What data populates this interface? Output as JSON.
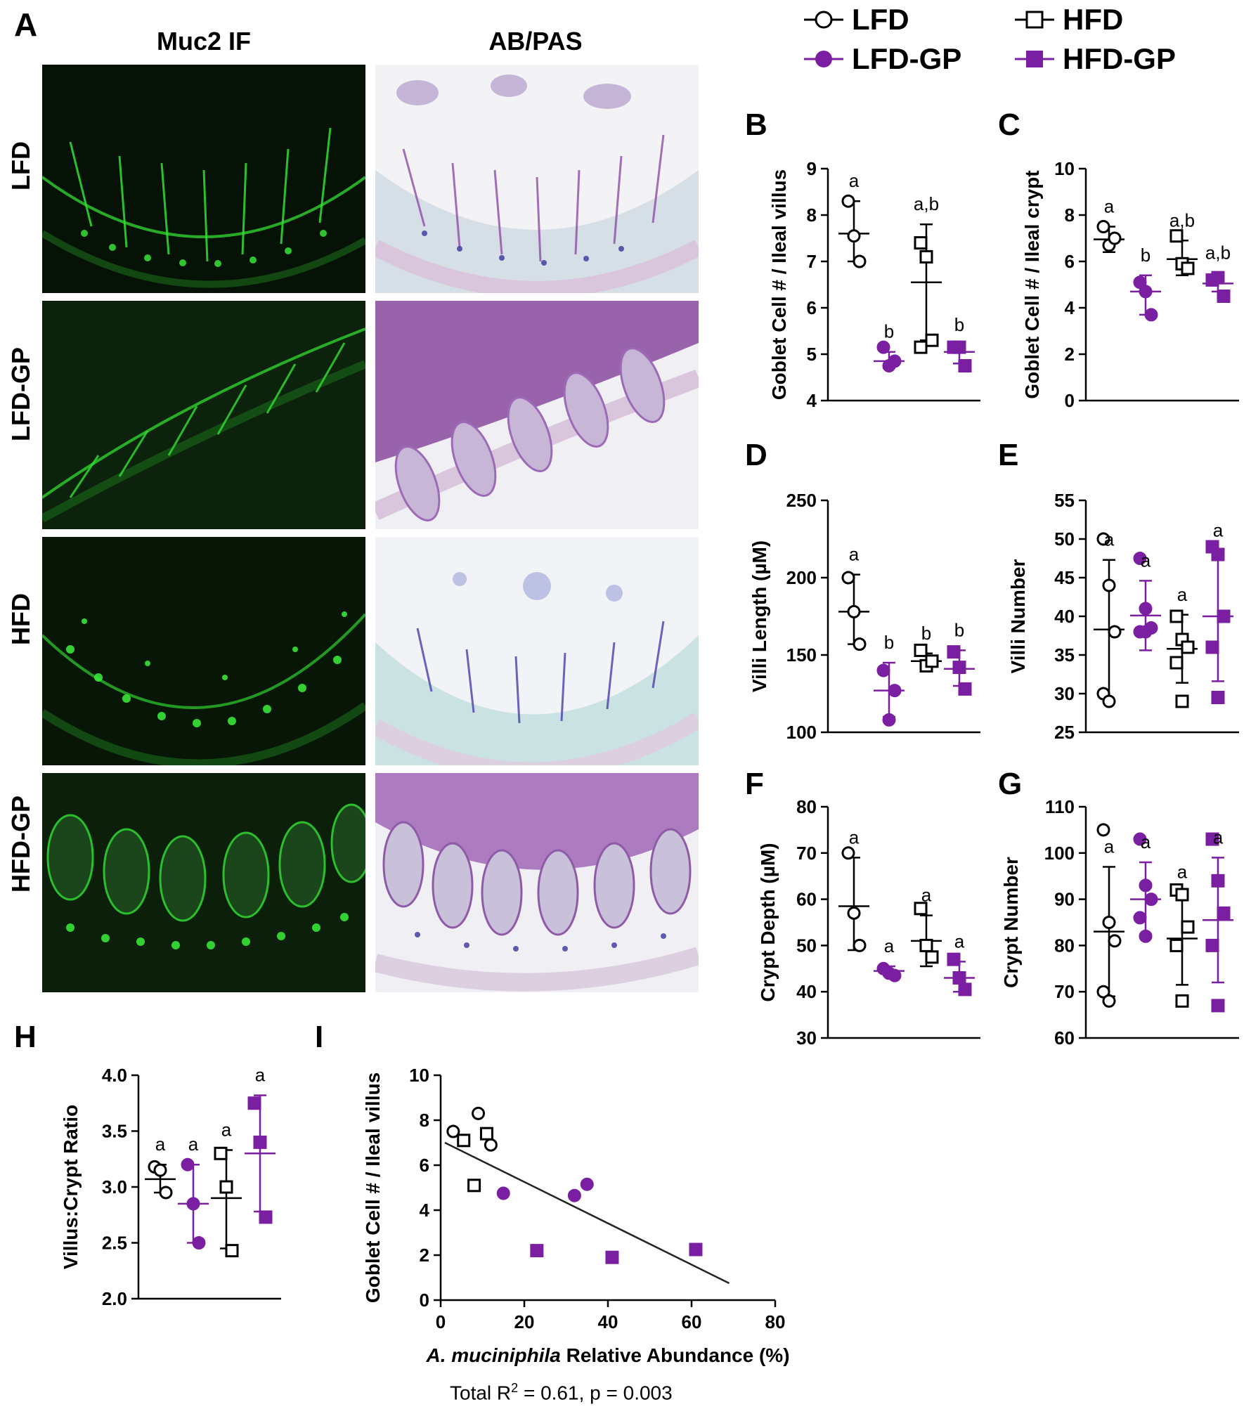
{
  "colors": {
    "purple": "#7b1fa2",
    "black": "#000000",
    "if_green": "#2fd12f",
    "if_bg": "#0b1a0b",
    "abpas_bg": "#eeeef2"
  },
  "panel_a": {
    "letter": "A",
    "col_headers": [
      "Muc2 IF",
      "AB/PAS"
    ],
    "row_headers": [
      "LFD",
      "LFD-GP",
      "HFD",
      "HFD-GP"
    ]
  },
  "legend": [
    {
      "label": "LFD",
      "marker": "circle-open",
      "color": "#000000"
    },
    {
      "label": "HFD",
      "marker": "square-open",
      "color": "#000000"
    },
    {
      "label": "LFD-GP",
      "marker": "circle-filled",
      "color": "#7b1fa2"
    },
    {
      "label": "HFD-GP",
      "marker": "square-filled",
      "color": "#7b1fa2"
    }
  ],
  "chart_data": [
    {
      "id": "B",
      "type": "scatter",
      "ylabel": "Goblet Cell # / Ileal villus",
      "ylim": [
        4,
        9
      ],
      "yticks": [
        4,
        5,
        6,
        7,
        8,
        9
      ],
      "groups": [
        {
          "name": "LFD",
          "values": [
            8.3,
            7.55,
            7.0
          ],
          "mean": 7.6,
          "sd_low": 7.0,
          "sd_high": 8.3,
          "letter": "a"
        },
        {
          "name": "LFD-GP",
          "values": [
            5.15,
            4.75,
            4.85
          ],
          "mean": 4.85,
          "sd_low": 4.7,
          "sd_high": 5.05,
          "letter": "b"
        },
        {
          "name": "HFD",
          "values": [
            7.4,
            7.1,
            5.3,
            5.15
          ],
          "mean": 6.55,
          "sd_low": 5.3,
          "sd_high": 7.8,
          "letter": "a,b"
        },
        {
          "name": "HFD-GP",
          "values": [
            5.15,
            5.15,
            4.75
          ],
          "mean": 5.05,
          "sd_low": 4.8,
          "sd_high": 5.2,
          "letter": "b"
        }
      ]
    },
    {
      "id": "C",
      "type": "scatter",
      "ylabel": "Goblet Cell # / Ileal crypt",
      "ylim": [
        0,
        10
      ],
      "yticks": [
        0,
        2,
        4,
        6,
        8,
        10
      ],
      "groups": [
        {
          "name": "LFD",
          "values": [
            7.5,
            6.7,
            7.0
          ],
          "mean": 6.95,
          "sd_low": 6.4,
          "sd_high": 7.5,
          "letter": "a"
        },
        {
          "name": "LFD-GP",
          "values": [
            5.1,
            4.7,
            3.7
          ],
          "mean": 4.7,
          "sd_low": 3.7,
          "sd_high": 5.4,
          "letter": "b"
        },
        {
          "name": "HFD",
          "values": [
            7.1,
            5.9,
            5.7
          ],
          "mean": 6.1,
          "sd_low": 5.4,
          "sd_high": 6.9,
          "letter": "a,b"
        },
        {
          "name": "HFD-GP",
          "values": [
            5.2,
            5.3,
            4.5
          ],
          "mean": 5.05,
          "sd_low": 4.7,
          "sd_high": 5.5,
          "letter": "a,b"
        }
      ]
    },
    {
      "id": "D",
      "type": "scatter",
      "ylabel": "Villi Length (µM)",
      "ylim": [
        100,
        250
      ],
      "yticks": [
        100,
        150,
        200,
        250
      ],
      "groups": [
        {
          "name": "LFD",
          "values": [
            200,
            178,
            157
          ],
          "mean": 178,
          "sd_low": 157,
          "sd_high": 202,
          "letter": "a"
        },
        {
          "name": "LFD-GP",
          "values": [
            140,
            108,
            127
          ],
          "mean": 127,
          "sd_low": 110,
          "sd_high": 145,
          "letter": "b"
        },
        {
          "name": "HFD",
          "values": [
            153,
            143,
            146
          ],
          "mean": 146,
          "sd_low": 141,
          "sd_high": 151,
          "letter": "b"
        },
        {
          "name": "HFD-GP",
          "values": [
            152,
            142,
            128
          ],
          "mean": 141,
          "sd_low": 130,
          "sd_high": 153,
          "letter": "b"
        }
      ]
    },
    {
      "id": "E",
      "type": "scatter",
      "ylabel": "Villi Number",
      "ylim": [
        25,
        55
      ],
      "yticks": [
        25,
        30,
        35,
        40,
        45,
        50,
        55
      ],
      "groups": [
        {
          "name": "LFD",
          "values": [
            50,
            44,
            38,
            30,
            29
          ],
          "mean": 38.3,
          "sd_low": 29.2,
          "sd_high": 47.3,
          "letter": "a"
        },
        {
          "name": "LFD-GP",
          "values": [
            47.5,
            41,
            38.5,
            38,
            38
          ],
          "mean": 40.1,
          "sd_low": 35.6,
          "sd_high": 44.6,
          "letter": "a"
        },
        {
          "name": "HFD",
          "values": [
            40,
            37,
            36,
            34,
            29
          ],
          "mean": 35.8,
          "sd_low": 31.4,
          "sd_high": 40.2,
          "letter": "a"
        },
        {
          "name": "HFD-GP",
          "values": [
            49,
            48,
            40,
            36,
            29.5
          ],
          "mean": 40,
          "sd_low": 31.6,
          "sd_high": 48.5,
          "letter": "a"
        }
      ]
    },
    {
      "id": "F",
      "type": "scatter",
      "ylabel": "Crypt Depth (µM)",
      "ylim": [
        30,
        80
      ],
      "yticks": [
        30,
        40,
        50,
        60,
        70,
        80
      ],
      "groups": [
        {
          "name": "LFD",
          "values": [
            70,
            57,
            50
          ],
          "mean": 58.5,
          "sd_low": 49,
          "sd_high": 69,
          "letter": "a"
        },
        {
          "name": "LFD-GP",
          "values": [
            45,
            44,
            43.5
          ],
          "mean": 44.5,
          "sd_low": 43.5,
          "sd_high": 45.5,
          "letter": "a"
        },
        {
          "name": "HFD",
          "values": [
            58,
            50,
            47.5
          ],
          "mean": 51,
          "sd_low": 45.5,
          "sd_high": 56.5,
          "letter": "a"
        },
        {
          "name": "HFD-GP",
          "values": [
            47,
            43,
            40.5
          ],
          "mean": 43,
          "sd_low": 40,
          "sd_high": 46.5,
          "letter": "a"
        }
      ]
    },
    {
      "id": "G",
      "type": "scatter",
      "ylabel": "Crypt Number",
      "ylim": [
        60,
        110
      ],
      "yticks": [
        60,
        70,
        80,
        90,
        100,
        110
      ],
      "groups": [
        {
          "name": "LFD",
          "values": [
            105,
            85,
            81,
            70,
            68
          ],
          "mean": 83,
          "sd_low": 69,
          "sd_high": 97,
          "letter": "a"
        },
        {
          "name": "LFD-GP",
          "values": [
            103,
            93,
            90,
            86,
            82
          ],
          "mean": 90,
          "sd_low": 82,
          "sd_high": 98,
          "letter": "a"
        },
        {
          "name": "HFD",
          "values": [
            92,
            91,
            84,
            80,
            68
          ],
          "mean": 81.5,
          "sd_low": 71.5,
          "sd_high": 91.5,
          "letter": "a"
        },
        {
          "name": "HFD-GP",
          "values": [
            103,
            94,
            87,
            80,
            67
          ],
          "mean": 85.5,
          "sd_low": 72,
          "sd_high": 99,
          "letter": "a"
        }
      ]
    },
    {
      "id": "H",
      "type": "scatter",
      "ylabel": "Villus:Crypt Ratio",
      "ylim": [
        2.0,
        4.0
      ],
      "yticks": [
        "2.0",
        "2.5",
        "3.0",
        "3.5",
        "4.0"
      ],
      "groups": [
        {
          "name": "LFD",
          "values": [
            3.18,
            3.15,
            2.95
          ],
          "mean": 3.07,
          "sd_low": 2.95,
          "sd_high": 3.2,
          "letter": "a"
        },
        {
          "name": "LFD-GP",
          "values": [
            3.2,
            2.85,
            2.5
          ],
          "mean": 2.85,
          "sd_low": 2.5,
          "sd_high": 3.2,
          "letter": "a"
        },
        {
          "name": "HFD",
          "values": [
            3.3,
            3.0,
            2.43
          ],
          "mean": 2.9,
          "sd_low": 2.45,
          "sd_high": 3.33,
          "letter": "a"
        },
        {
          "name": "HFD-GP",
          "values": [
            3.75,
            3.4,
            2.73
          ],
          "mean": 3.3,
          "sd_low": 2.78,
          "sd_high": 3.82,
          "letter": "a"
        }
      ]
    },
    {
      "id": "I",
      "type": "scatter",
      "xlabel_italic": "A. muciniphila",
      "xlabel_rest": " Relative Abundance (%)",
      "ylabel": "Goblet Cell # / Ileal villus",
      "xlim": [
        0,
        80
      ],
      "xticks": [
        0,
        20,
        40,
        60,
        80
      ],
      "ylim": [
        0,
        10
      ],
      "yticks": [
        0,
        2,
        4,
        6,
        8,
        10
      ],
      "points": [
        {
          "group": "LFD",
          "x": 3,
          "y": 7.5
        },
        {
          "group": "LFD",
          "x": 9,
          "y": 8.3
        },
        {
          "group": "LFD",
          "x": 12,
          "y": 6.9
        },
        {
          "group": "HFD",
          "x": 5.5,
          "y": 7.1
        },
        {
          "group": "HFD",
          "x": 11,
          "y": 7.4
        },
        {
          "group": "HFD",
          "x": 8,
          "y": 5.1
        },
        {
          "group": "LFD-GP",
          "x": 15,
          "y": 4.75
        },
        {
          "group": "LFD-GP",
          "x": 32,
          "y": 4.65
        },
        {
          "group": "LFD-GP",
          "x": 35,
          "y": 5.15
        },
        {
          "group": "HFD-GP",
          "x": 23,
          "y": 2.2
        },
        {
          "group": "HFD-GP",
          "x": 41,
          "y": 1.9
        },
        {
          "group": "HFD-GP",
          "x": 61,
          "y": 2.25
        }
      ],
      "fit_line": {
        "x": [
          1,
          69
        ],
        "y": [
          7.0,
          0.75
        ]
      },
      "stats_pre": "Total R",
      "stats_sup": "2",
      "stats_post": " = 0.61, p = 0.003"
    }
  ]
}
